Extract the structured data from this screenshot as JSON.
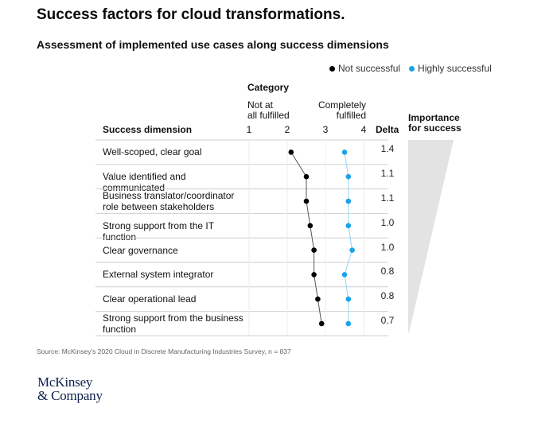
{
  "title": "Success factors for cloud transformations.",
  "subtitle": "Assessment of implemented use cases along success dimensions",
  "legend": [
    {
      "label": "Not successful",
      "color": "#000000"
    },
    {
      "label": "Highly successful",
      "color": "#1aa3e8"
    }
  ],
  "headers": {
    "category": "Category",
    "not_at_all_line1": "Not at",
    "not_at_all_line2": "all fulfilled",
    "completely_line1": "Completely",
    "completely_line2": "fulfilled",
    "dimension": "Success dimension",
    "delta": "Delta",
    "importance_line1": "Importance",
    "importance_line2": "for success"
  },
  "source": "Source: McKinsey's 2020 Cloud in Discrete Manufacturing Industries Survey, n = 837",
  "logo": {
    "line1": "McKinsey",
    "line2": "& Company"
  },
  "chart_data": {
    "type": "scatter",
    "title": "Success factors for cloud transformations.",
    "subtitle": "Assessment of implemented use cases along success dimensions",
    "xlabel": "Category",
    "xlim": [
      1,
      4
    ],
    "x_ticks": [
      "1",
      "2",
      "3",
      "4"
    ],
    "categories": [
      "Well-scoped, clear goal",
      "Value identified and communicated",
      "Business translator/coordinator role between stakeholders",
      "Strong support from the IT function",
      "Clear governance",
      "External system integrator",
      "Clear operational lead",
      "Strong support from the business function"
    ],
    "series": [
      {
        "name": "Not successful",
        "color": "#000000",
        "values": [
          2.1,
          2.5,
          2.5,
          2.6,
          2.7,
          2.7,
          2.8,
          2.9
        ]
      },
      {
        "name": "Highly successful",
        "color": "#1aa3e8",
        "values": [
          3.5,
          3.6,
          3.6,
          3.6,
          3.7,
          3.5,
          3.6,
          3.6
        ]
      }
    ],
    "delta": [
      "1.4",
      "1.1",
      "1.1",
      "1.0",
      "1.0",
      "0.8",
      "0.8",
      "0.7"
    ],
    "importance_label": "Importance for success"
  }
}
